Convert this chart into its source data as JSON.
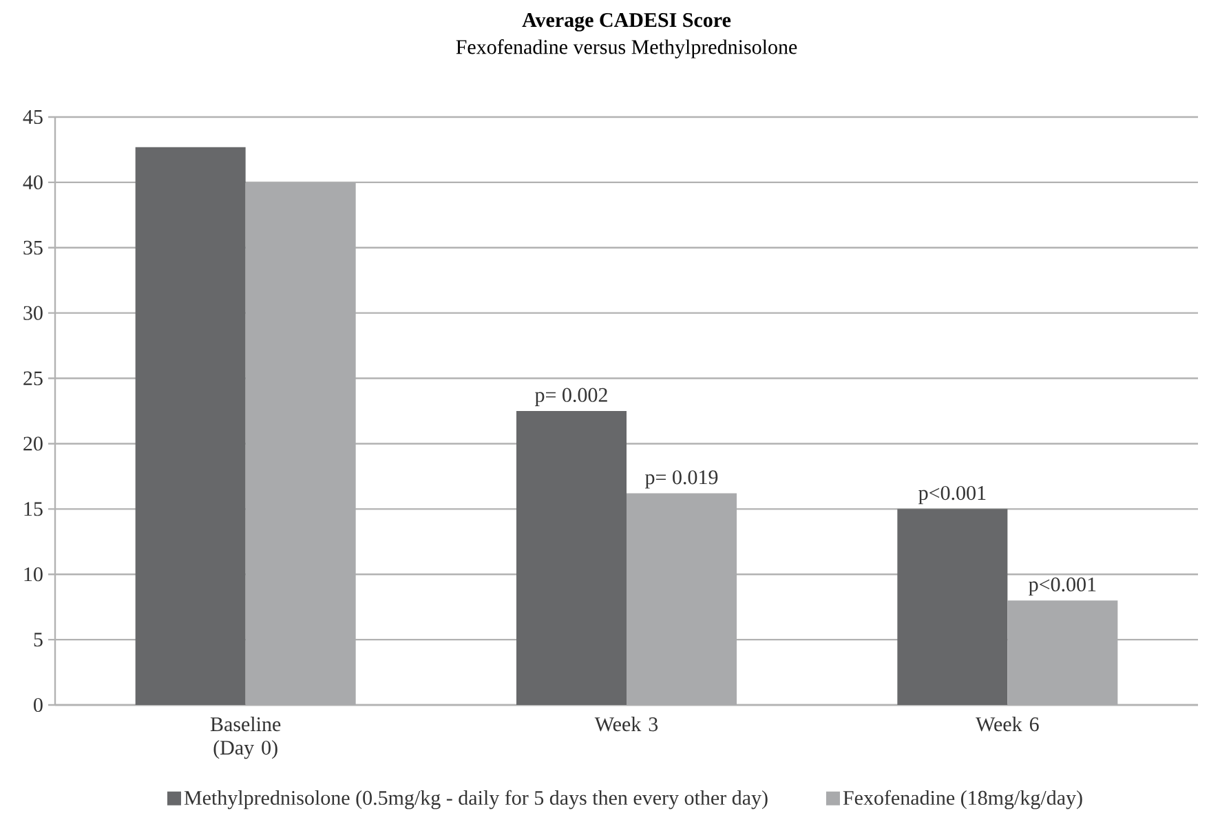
{
  "chart_data": {
    "type": "bar",
    "title": "Average CADESI Score",
    "subtitle": "Fexofenadine versus Methylprednisolone",
    "categories": [
      "Baseline (Day 0)",
      "Week 3",
      "Week 6"
    ],
    "series": [
      {
        "name": "Methylprednisolone (0.5mg/kg - daily for 5 days then every other day)",
        "color": "#67686a",
        "values": [
          42.7,
          22.5,
          15.0
        ]
      },
      {
        "name": "Fexofenadine (18mg/kg/day)",
        "color": "#a9aaac",
        "values": [
          40.0,
          16.2,
          8.0
        ]
      }
    ],
    "ylim": [
      0,
      45
    ],
    "yticks": [
      0,
      5,
      10,
      15,
      20,
      25,
      30,
      35,
      40,
      45
    ],
    "grid": "y",
    "legend": "bottom",
    "annotations": [
      {
        "text": "p= 0.002",
        "x": "Week 3",
        "y": 22.5
      },
      {
        "text": "p= 0.019",
        "x": "Week 3",
        "y": 16.2
      },
      {
        "text": "p<0.001",
        "x": "Week 6",
        "y": 15.0
      },
      {
        "text": "p<0.001",
        "x": "Week 6",
        "y": 8.0
      }
    ]
  }
}
